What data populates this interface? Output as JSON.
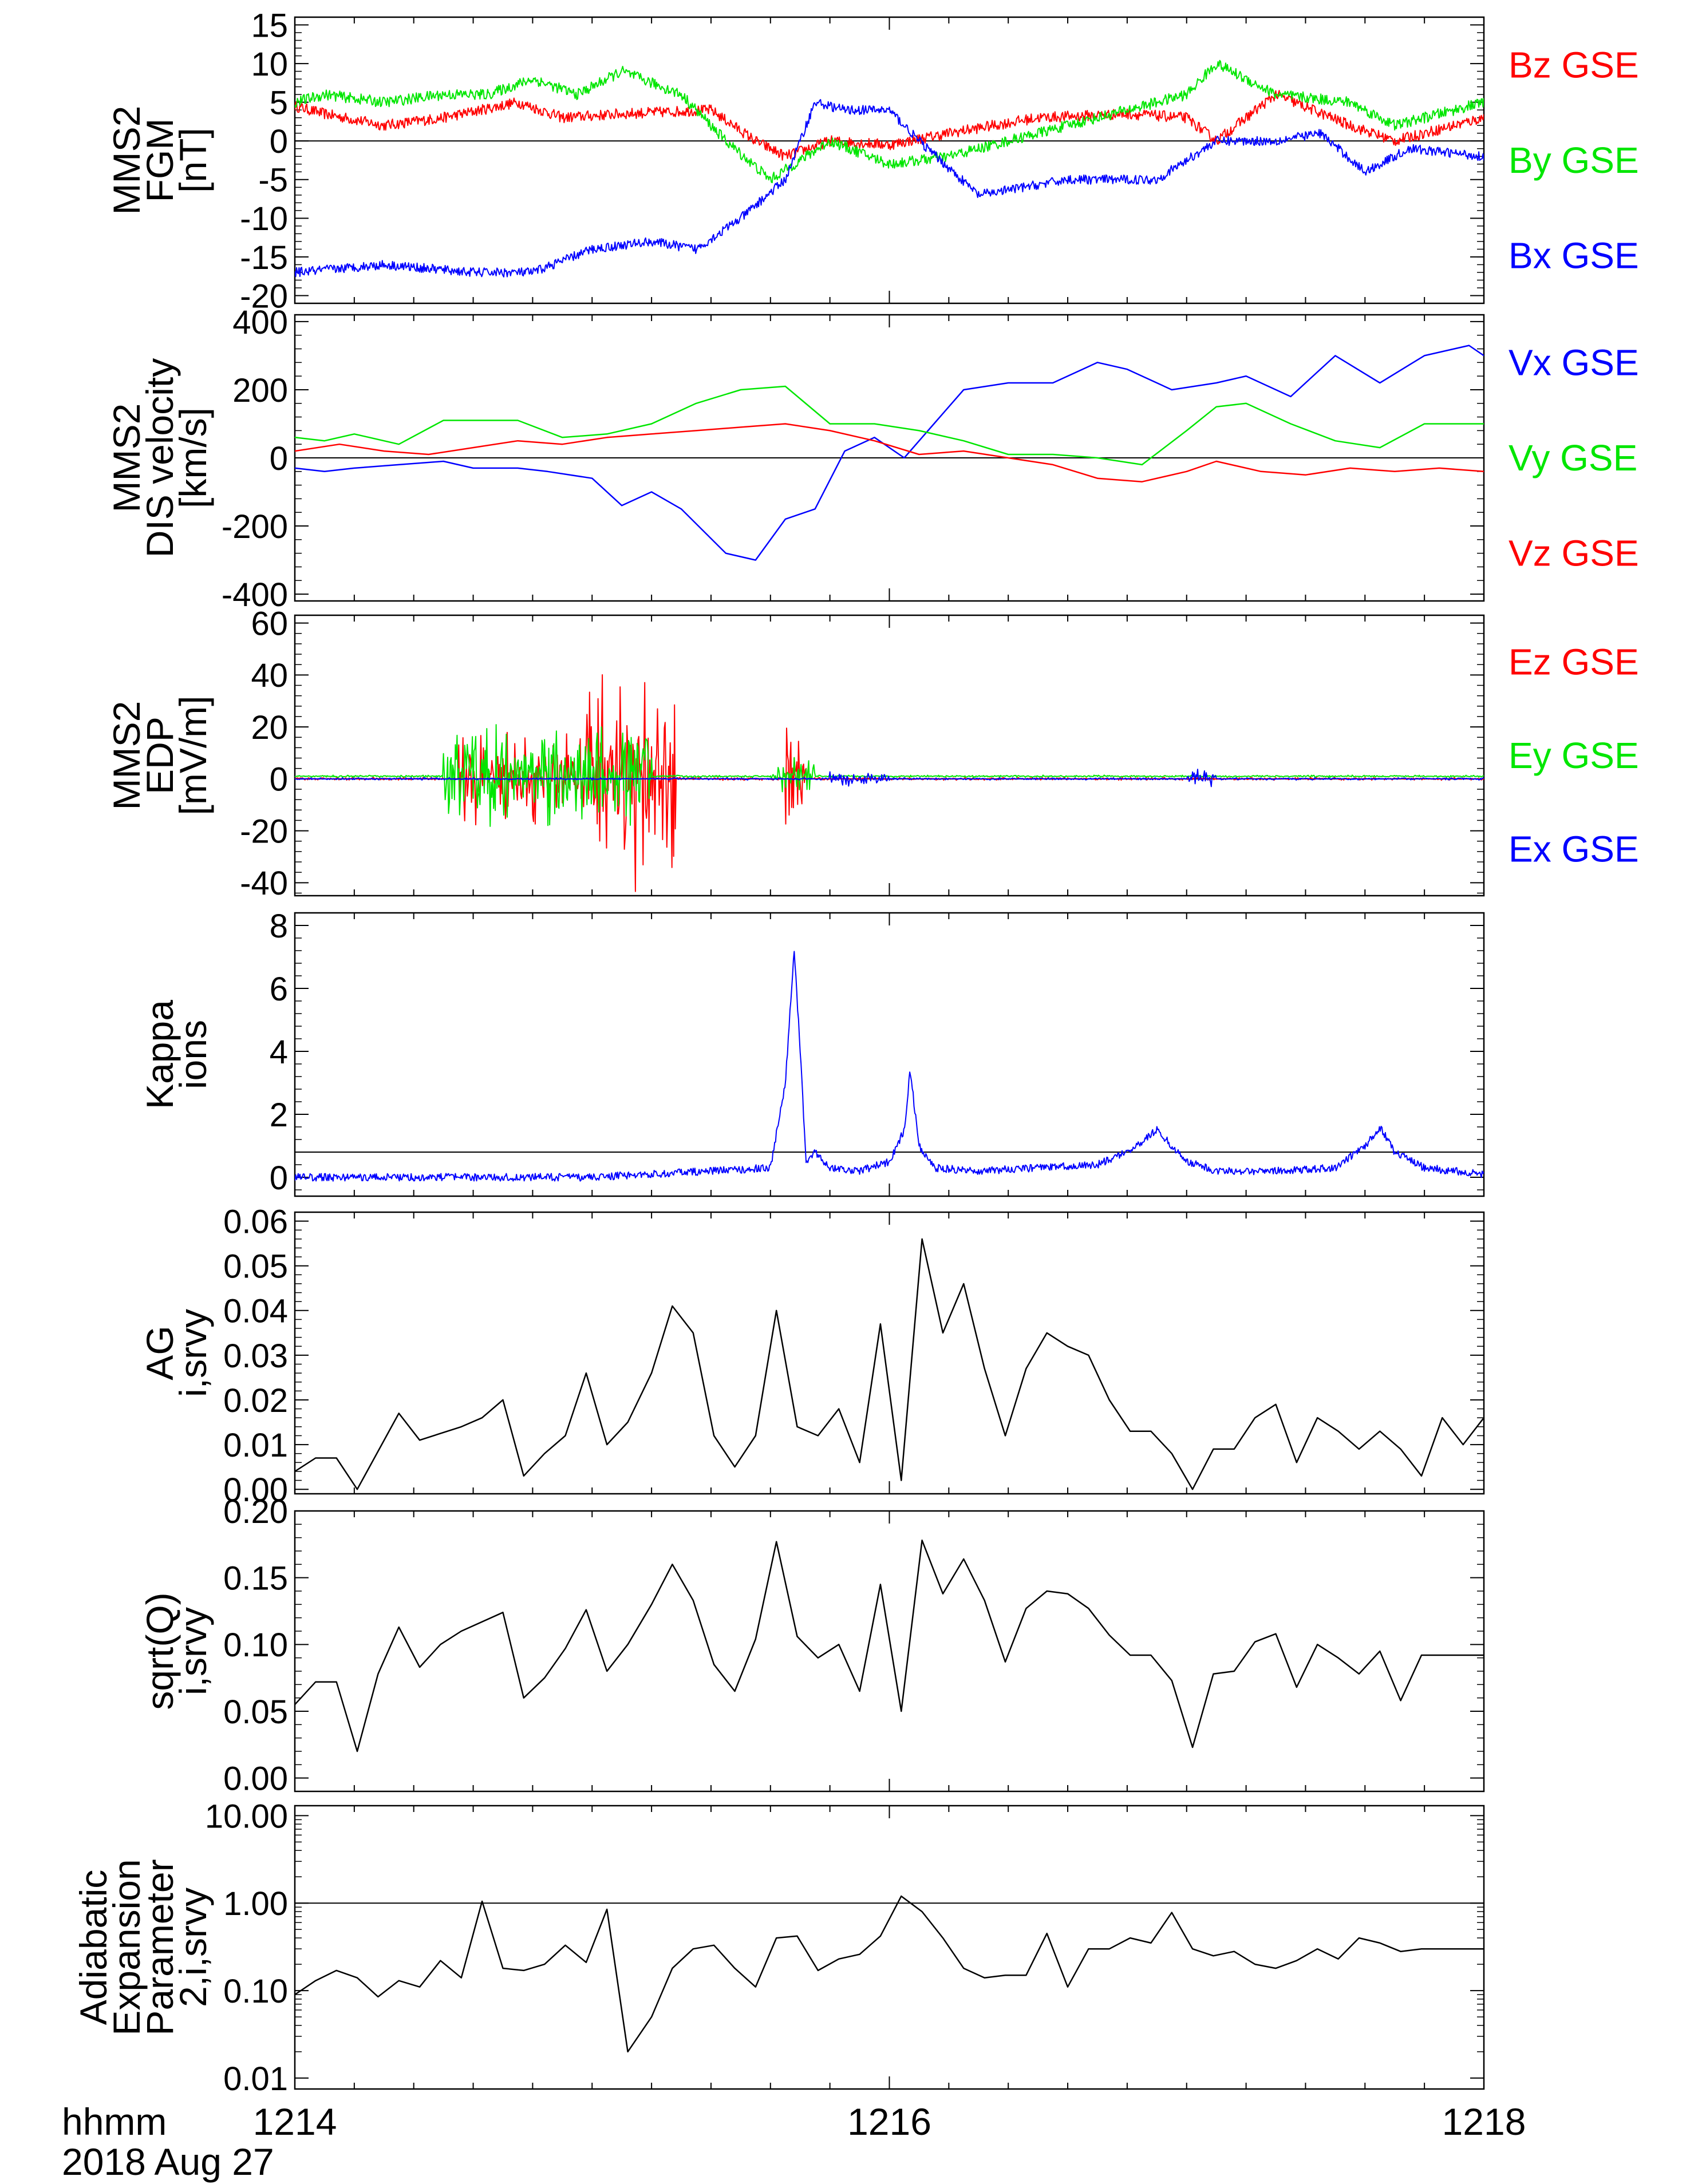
{
  "colors": {
    "blue": "#0000ff",
    "green": "#00e600",
    "red": "#ff0000",
    "black": "#000000"
  },
  "time_axis": {
    "unit_label": "hhmm",
    "date_label": "2018 Aug 27",
    "tick_labels": [
      "1214",
      "1216",
      "1218"
    ],
    "range_minutes": [
      0,
      4
    ]
  },
  "chart_data": [
    {
      "type": "line",
      "ylabel_lines": [
        "MMS2",
        "FGM",
        "[nT]"
      ],
      "ylim": [
        -21,
        16
      ],
      "yticks": [
        -20,
        -15,
        -10,
        -5,
        0,
        5,
        10,
        15
      ],
      "ytick_labels": [
        "-20",
        "-15",
        "-10",
        "-5",
        "0",
        "5",
        "10",
        "15"
      ],
      "zero_line": 0,
      "legend_placement": "right",
      "series": [
        {
          "name": "Bz GSE",
          "color": "#ff0000",
          "noise": 0.7,
          "x": [
            0,
            0.1,
            0.3,
            0.5,
            0.75,
            0.9,
            1.1,
            1.4,
            1.55,
            1.65,
            1.8,
            2.0,
            2.2,
            2.5,
            2.8,
            3.0,
            3.1,
            3.3,
            3.55,
            3.7,
            3.9,
            4.0
          ],
          "y": [
            4.5,
            3.5,
            2,
            3,
            5,
            3,
            3.5,
            4,
            0,
            -2,
            0,
            -0.5,
            1,
            3,
            3.5,
            3,
            0,
            6,
            2,
            0,
            2,
            3
          ]
        },
        {
          "name": "By GSE",
          "color": "#00e600",
          "noise": 0.7,
          "x": [
            0,
            0.1,
            0.3,
            0.5,
            0.65,
            0.8,
            0.95,
            1.1,
            1.3,
            1.45,
            1.6,
            1.8,
            2.0,
            2.2,
            2.5,
            2.8,
            3.0,
            3.1,
            3.3,
            3.55,
            3.7,
            3.9,
            4.0
          ],
          "y": [
            5,
            6,
            5,
            6,
            6,
            8,
            6,
            9,
            6,
            0,
            -5,
            0,
            -3,
            -2,
            1,
            4,
            6,
            10,
            6,
            5,
            2,
            4,
            5
          ]
        },
        {
          "name": "Bx GSE",
          "color": "#0000ff",
          "noise": 0.6,
          "x": [
            0,
            0.3,
            0.6,
            0.8,
            1.0,
            1.2,
            1.35,
            1.5,
            1.65,
            1.75,
            1.85,
            2.0,
            2.1,
            2.3,
            2.6,
            2.9,
            3.1,
            3.3,
            3.45,
            3.6,
            3.75,
            4.0
          ],
          "y": [
            -17,
            -16,
            -17,
            -17,
            -14,
            -13,
            -14,
            -10,
            -5,
            5,
            4,
            4,
            0,
            -7,
            -5,
            -5,
            0,
            0,
            1,
            -4,
            -1,
            -2
          ]
        }
      ]
    },
    {
      "type": "line",
      "ylabel_lines": [
        "MMS2",
        "DIS velocity",
        "[km/s]"
      ],
      "ylim": [
        -420,
        420
      ],
      "yticks": [
        -400,
        -200,
        0,
        200,
        400
      ],
      "ytick_labels": [
        "-400",
        "-200",
        "0",
        "200",
        "400"
      ],
      "zero_line": 0,
      "legend_placement": "right",
      "series": [
        {
          "name": "Vx GSE",
          "color": "#0000ff",
          "noise": 0,
          "x": [
            0,
            0.1,
            0.2,
            0.35,
            0.5,
            0.6,
            0.75,
            0.85,
            1.0,
            1.1,
            1.2,
            1.3,
            1.45,
            1.55,
            1.65,
            1.75,
            1.85,
            1.95,
            2.05,
            2.15,
            2.25,
            2.4,
            2.55,
            2.7,
            2.8,
            2.95,
            3.1,
            3.2,
            3.35,
            3.5,
            3.65,
            3.8,
            3.95,
            4.0
          ],
          "y": [
            -30,
            -40,
            -30,
            -20,
            -10,
            -30,
            -30,
            -40,
            -60,
            -140,
            -100,
            -150,
            -280,
            -300,
            -180,
            -150,
            20,
            60,
            0,
            100,
            200,
            220,
            220,
            280,
            260,
            200,
            220,
            240,
            180,
            300,
            220,
            300,
            330,
            300
          ]
        },
        {
          "name": "Vy GSE",
          "color": "#00e600",
          "noise": 0,
          "x": [
            0,
            0.1,
            0.2,
            0.35,
            0.5,
            0.75,
            0.9,
            1.05,
            1.2,
            1.35,
            1.5,
            1.65,
            1.8,
            1.95,
            2.1,
            2.25,
            2.4,
            2.55,
            2.7,
            2.85,
            3.0,
            3.1,
            3.2,
            3.35,
            3.5,
            3.65,
            3.8,
            4.0
          ],
          "y": [
            60,
            50,
            70,
            40,
            110,
            110,
            60,
            70,
            100,
            160,
            200,
            210,
            100,
            100,
            80,
            50,
            10,
            10,
            0,
            -20,
            80,
            150,
            160,
            100,
            50,
            30,
            100,
            100
          ]
        },
        {
          "name": "Vz GSE",
          "color": "#ff0000",
          "noise": 0,
          "x": [
            0,
            0.15,
            0.3,
            0.45,
            0.6,
            0.75,
            0.9,
            1.05,
            1.2,
            1.35,
            1.5,
            1.65,
            1.8,
            1.95,
            2.1,
            2.25,
            2.4,
            2.55,
            2.7,
            2.85,
            3.0,
            3.1,
            3.25,
            3.4,
            3.55,
            3.7,
            3.85,
            4.0
          ],
          "y": [
            20,
            40,
            20,
            10,
            30,
            50,
            40,
            60,
            70,
            80,
            90,
            100,
            80,
            50,
            10,
            20,
            0,
            -20,
            -60,
            -70,
            -40,
            -10,
            -40,
            -50,
            -30,
            -40,
            -30,
            -40
          ]
        }
      ]
    },
    {
      "type": "line",
      "ylabel_lines": [
        "MMS2",
        "EDP",
        "[mV/m]"
      ],
      "ylim": [
        -45,
        63
      ],
      "yticks": [
        -40,
        -20,
        0,
        20,
        40,
        60
      ],
      "ytick_labels": [
        "-40",
        "-20",
        "0",
        "20",
        "40",
        "60"
      ],
      "zero_line": 0,
      "legend_placement": "right",
      "series": [
        {
          "name": "Ez GSE",
          "color": "#ff0000",
          "noise": 0,
          "x": [
            0,
            0.5,
            0.85,
            1.0,
            1.1,
            1.2,
            1.25,
            1.35,
            1.5,
            1.55,
            1.6,
            1.65,
            1.7,
            1.75,
            1.85,
            2.0,
            2.2,
            2.4,
            2.6,
            2.8,
            3.0,
            3.2,
            3.4,
            3.6,
            3.8,
            4.0
          ],
          "y": [
            0,
            0,
            0,
            0,
            0,
            0,
            0,
            0,
            0,
            0,
            0,
            0,
            0,
            0,
            0,
            0,
            0,
            0,
            0,
            0,
            0,
            0,
            0,
            0,
            0,
            0
          ],
          "bursts": [
            [
              0.55,
              1.1,
              20
            ],
            [
              0.98,
              1.28,
              45
            ],
            [
              1.65,
              1.72,
              34
            ]
          ]
        },
        {
          "name": "Ey GSE",
          "color": "#00e600",
          "noise": 0,
          "x": [
            0,
            4.0
          ],
          "y": [
            1,
            1
          ],
          "bursts": [
            [
              0.5,
              1.2,
              30
            ],
            [
              1.6,
              1.75,
              10
            ]
          ]
        },
        {
          "name": "Ex GSE",
          "color": "#0000ff",
          "noise": 0,
          "x": [
            0,
            4.0
          ],
          "y": [
            0,
            0
          ],
          "bursts": [
            [
              1.8,
              2.0,
              4
            ],
            [
              3.0,
              3.1,
              6
            ]
          ]
        }
      ]
    },
    {
      "type": "line",
      "ylabel_lines": [
        "Kappa",
        "ions"
      ],
      "ylim": [
        -0.6,
        8.4
      ],
      "yticks": [
        0,
        2,
        4,
        6,
        8
      ],
      "ytick_labels": [
        "0",
        "2",
        "4",
        "6",
        "8"
      ],
      "reference_line": 0.8,
      "series": [
        {
          "name": "",
          "color": "#0000ff",
          "noise": 0.12,
          "x": [
            0,
            0.5,
            1.0,
            1.2,
            1.4,
            1.6,
            1.65,
            1.68,
            1.7,
            1.72,
            1.75,
            1.8,
            1.9,
            2.0,
            2.05,
            2.07,
            2.1,
            2.15,
            2.3,
            2.5,
            2.7,
            2.8,
            2.9,
            3.0,
            3.1,
            3.3,
            3.5,
            3.6,
            3.65,
            3.7,
            3.8,
            4.0
          ],
          "y": [
            0,
            0,
            0,
            0.1,
            0.2,
            0.3,
            3,
            7.2,
            4,
            0.5,
            0.8,
            0.3,
            0.2,
            0.5,
            1.5,
            3.4,
            1.0,
            0.3,
            0.2,
            0.3,
            0.4,
            0.8,
            1.5,
            0.5,
            0.2,
            0.2,
            0.3,
            1.0,
            1.6,
            0.8,
            0.3,
            0.1
          ]
        }
      ]
    },
    {
      "type": "line",
      "ylabel_lines": [
        "AG",
        "i,srvy"
      ],
      "ylim": [
        -0.001,
        0.062
      ],
      "yticks": [
        0,
        0.01,
        0.02,
        0.03,
        0.04,
        0.05,
        0.06
      ],
      "ytick_labels": [
        "0.00",
        "0.01",
        "0.02",
        "0.03",
        "0.04",
        "0.05",
        "0.06"
      ],
      "series": [
        {
          "name": "",
          "color": "#000000",
          "noise": 0,
          "x": [
            0,
            0.07,
            0.14,
            0.21,
            0.35,
            0.42,
            0.56,
            0.63,
            0.7,
            0.77,
            0.84,
            0.91,
            0.98,
            1.05,
            1.12,
            1.2,
            1.27,
            1.34,
            1.41,
            1.48,
            1.55,
            1.62,
            1.69,
            1.76,
            1.83,
            1.9,
            1.97,
            2.04,
            2.11,
            2.18,
            2.25,
            2.32,
            2.39,
            2.46,
            2.53,
            2.6,
            2.67,
            2.74,
            2.81,
            2.88,
            2.95,
            3.02,
            3.09,
            3.16,
            3.23,
            3.3,
            3.37,
            3.44,
            3.51,
            3.58,
            3.65,
            3.72,
            3.79,
            3.86,
            3.93,
            4.0
          ],
          "y": [
            0.004,
            0.007,
            0.007,
            0.0,
            0.017,
            0.011,
            0.014,
            0.016,
            0.02,
            0.003,
            0.008,
            0.012,
            0.026,
            0.01,
            0.015,
            0.026,
            0.041,
            0.035,
            0.012,
            0.005,
            0.012,
            0.04,
            0.014,
            0.012,
            0.018,
            0.006,
            0.037,
            0.002,
            0.056,
            0.035,
            0.046,
            0.027,
            0.012,
            0.027,
            0.035,
            0.032,
            0.03,
            0.02,
            0.013,
            0.013,
            0.008,
            0.0,
            0.009,
            0.009,
            0.016,
            0.019,
            0.006,
            0.016,
            0.013,
            0.009,
            0.013,
            0.009,
            0.003,
            0.016,
            0.01,
            0.016
          ]
        }
      ]
    },
    {
      "type": "line",
      "ylabel_lines": [
        "sqrt(Q)",
        "i,srvy"
      ],
      "ylim": [
        -0.01,
        0.2
      ],
      "yticks": [
        0,
        0.05,
        0.1,
        0.15,
        0.2
      ],
      "ytick_labels": [
        "0.00",
        "0.05",
        "0.10",
        "0.15",
        "0.20"
      ],
      "series": [
        {
          "name": "",
          "color": "#000000",
          "noise": 0,
          "x": [
            0,
            0.07,
            0.14,
            0.21,
            0.28,
            0.35,
            0.42,
            0.49,
            0.56,
            0.7,
            0.77,
            0.84,
            0.91,
            0.98,
            1.05,
            1.12,
            1.2,
            1.27,
            1.34,
            1.41,
            1.48,
            1.55,
            1.62,
            1.69,
            1.76,
            1.83,
            1.9,
            1.97,
            2.04,
            2.11,
            2.18,
            2.25,
            2.32,
            2.39,
            2.46,
            2.53,
            2.6,
            2.67,
            2.74,
            2.81,
            2.88,
            2.95,
            3.02,
            3.09,
            3.16,
            3.23,
            3.3,
            3.37,
            3.44,
            3.51,
            3.58,
            3.65,
            3.72,
            3.79,
            3.86,
            3.93,
            4.0
          ],
          "y": [
            0.055,
            0.072,
            0.072,
            0.02,
            0.078,
            0.113,
            0.083,
            0.1,
            0.11,
            0.124,
            0.06,
            0.075,
            0.097,
            0.126,
            0.08,
            0.1,
            0.13,
            0.16,
            0.133,
            0.085,
            0.065,
            0.104,
            0.177,
            0.106,
            0.09,
            0.1,
            0.065,
            0.145,
            0.05,
            0.178,
            0.138,
            0.164,
            0.133,
            0.087,
            0.127,
            0.14,
            0.138,
            0.127,
            0.107,
            0.092,
            0.092,
            0.073,
            0.023,
            0.078,
            0.08,
            0.102,
            0.108,
            0.068,
            0.1,
            0.09,
            0.078,
            0.095,
            0.058,
            0.092,
            0.092,
            0.092,
            0.092
          ]
        }
      ]
    },
    {
      "type": "line",
      "ylabel_lines": [
        "Adiabatic",
        "Expansion",
        "Parameter",
        "2,i,srvy"
      ],
      "scale": "log",
      "ylim": [
        0.0075,
        13
      ],
      "yticks": [
        0.01,
        0.1,
        1,
        10
      ],
      "ytick_labels": [
        "0.01",
        "0.10",
        "1.00",
        "10.00"
      ],
      "reference_line": 1,
      "series": [
        {
          "name": "",
          "color": "#000000",
          "noise": 0,
          "x": [
            0,
            0.07,
            0.14,
            0.21,
            0.28,
            0.35,
            0.42,
            0.49,
            0.56,
            0.63,
            0.7,
            0.77,
            0.84,
            0.91,
            0.98,
            1.05,
            1.12,
            1.2,
            1.27,
            1.34,
            1.41,
            1.48,
            1.55,
            1.62,
            1.69,
            1.76,
            1.83,
            1.9,
            1.97,
            2.04,
            2.11,
            2.18,
            2.25,
            2.32,
            2.39,
            2.46,
            2.53,
            2.6,
            2.67,
            2.74,
            2.81,
            2.88,
            2.95,
            3.02,
            3.09,
            3.16,
            3.23,
            3.3,
            3.37,
            3.44,
            3.51,
            3.58,
            3.65,
            3.72,
            3.79,
            3.86,
            3.93,
            4.0
          ],
          "y": [
            0.09,
            0.13,
            0.17,
            0.14,
            0.085,
            0.13,
            0.11,
            0.22,
            0.14,
            1.05,
            0.18,
            0.17,
            0.2,
            0.33,
            0.21,
            0.85,
            0.02,
            0.05,
            0.18,
            0.3,
            0.33,
            0.18,
            0.11,
            0.4,
            0.42,
            0.17,
            0.23,
            0.26,
            0.42,
            1.2,
            0.8,
            0.4,
            0.18,
            0.14,
            0.15,
            0.15,
            0.45,
            0.11,
            0.3,
            0.3,
            0.4,
            0.35,
            0.78,
            0.3,
            0.25,
            0.28,
            0.2,
            0.18,
            0.22,
            0.3,
            0.23,
            0.4,
            0.35,
            0.28,
            0.3,
            0.3,
            0.3,
            0.3
          ]
        }
      ]
    }
  ]
}
